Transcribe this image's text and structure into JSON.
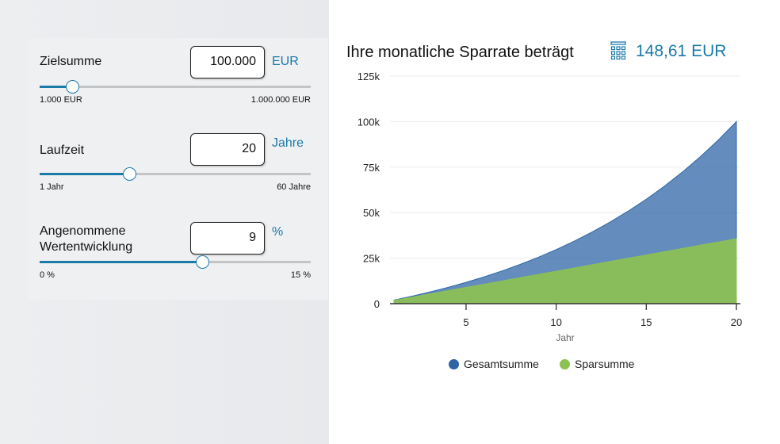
{
  "inputs": [
    {
      "label": "Zielsumme",
      "value": "100.000",
      "unit": "EUR",
      "min": "1.000 EUR",
      "max": "1.000.000 EUR",
      "position": 0.12
    },
    {
      "label": "Laufzeit",
      "value": "20",
      "unit": "Jahre",
      "min": "1 Jahr",
      "max": "60 Jahre",
      "position": 0.33
    },
    {
      "label": "Angenommene Wertentwicklung",
      "value": "9",
      "unit": "%",
      "min": "0 %",
      "max": "15 %",
      "position": 0.6
    }
  ],
  "result": {
    "title": "Ihre monatliche Sparrate beträgt",
    "icon": "calculator-icon",
    "value": "148,61 EUR"
  },
  "colors": {
    "accent": "#1a7aa8",
    "gesamt": "#2e65a6",
    "spar": "#8cc152"
  },
  "chart_data": {
    "type": "area",
    "xlabel": "Jahr",
    "ylabel": "",
    "xlim": [
      1,
      20
    ],
    "ylim": [
      0,
      125000
    ],
    "xticks": [
      5,
      10,
      15,
      20
    ],
    "yticks": [
      {
        "v": 0,
        "label": "0"
      },
      {
        "v": 25000,
        "label": "25k"
      },
      {
        "v": 50000,
        "label": "50k"
      },
      {
        "v": 75000,
        "label": "75k"
      },
      {
        "v": 100000,
        "label": "100k"
      },
      {
        "v": 125000,
        "label": "125k"
      }
    ],
    "x": [
      1,
      2,
      3,
      4,
      5,
      6,
      7,
      8,
      9,
      10,
      11,
      12,
      13,
      14,
      15,
      16,
      17,
      18,
      19,
      20
    ],
    "series": [
      {
        "name": "Gesamtsumme",
        "values": [
          1955,
          4083,
          6407,
          8938,
          11696,
          14706,
          17983,
          21558,
          25451,
          29698,
          34323,
          39369,
          44866,
          50858,
          57391,
          64510,
          72270,
          80729,
          89951,
          100000
        ]
      },
      {
        "name": "Sparsumme",
        "values": [
          1783,
          3567,
          5350,
          7133,
          8917,
          10700,
          12483,
          14266,
          16050,
          17833,
          19616,
          21400,
          23183,
          24966,
          26750,
          28533,
          30316,
          32100,
          33883,
          35666
        ]
      }
    ],
    "grid": true,
    "legend": "bottom"
  }
}
